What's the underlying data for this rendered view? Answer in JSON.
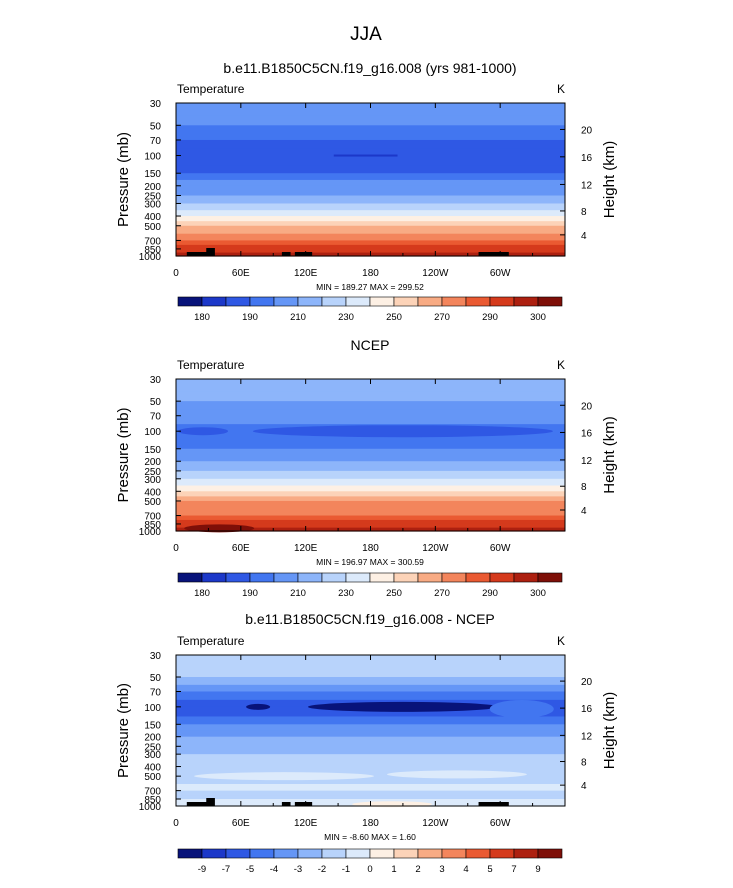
{
  "figure": {
    "title": "JJA"
  },
  "colors": {
    "temp": [
      "#08137a",
      "#1c38c9",
      "#2f58e4",
      "#4276f0",
      "#6596f6",
      "#8db5fa",
      "#b8d3fb",
      "#dceafb",
      "#fdf0e4",
      "#fcd3b8",
      "#f8ab84",
      "#f3855c",
      "#ea5a32",
      "#d53a1c",
      "#ad2010",
      "#7e0f08"
    ],
    "diff": [
      "#08137a",
      "#1c38c9",
      "#2f58e4",
      "#4276f0",
      "#6596f6",
      "#8db5fa",
      "#b8d3fb",
      "#dceafb",
      "#fdf0e4",
      "#fcd3b8",
      "#f8ab84",
      "#f3855c",
      "#ea5a32",
      "#d53a1c",
      "#ad2010",
      "#7e0f08"
    ],
    "land": "#000000"
  },
  "chart_data": [
    {
      "type": "heatmap",
      "title": "b.e11.B1850C5CN.f19_g16.008 (yrs 981-1000)",
      "left_label": "Temperature",
      "units": "K",
      "ylabel": "Pressure (mb)",
      "y2label": "Height (km)",
      "x_ticks": [
        "0",
        "60E",
        "120E",
        "180",
        "120W",
        "60W"
      ],
      "y_ticks": [
        "30",
        "50",
        "70",
        "100",
        "150",
        "200",
        "250",
        "300",
        "400",
        "500",
        "700",
        "850",
        "1000"
      ],
      "height_ticks": [
        "20",
        "16",
        "12",
        "8",
        "4"
      ],
      "stats": "MIN = 189.27  MAX = 299.52",
      "colorbar_labels": [
        "180",
        "190",
        "210",
        "230",
        "250",
        "270",
        "290",
        "300"
      ],
      "levels": [
        30,
        40,
        50,
        60,
        70,
        85,
        100,
        125,
        150,
        175,
        200,
        250,
        300,
        350,
        400,
        450,
        500,
        600,
        700,
        775,
        850,
        925,
        1000
      ],
      "band_color_index": [
        4,
        4,
        3,
        3,
        2,
        2,
        2,
        2,
        3,
        4,
        4,
        5,
        6,
        7,
        8,
        9,
        10,
        11,
        12,
        13,
        13,
        14
      ]
    },
    {
      "type": "heatmap",
      "title": "NCEP",
      "left_label": "Temperature",
      "units": "K",
      "ylabel": "Pressure (mb)",
      "y2label": "Height (km)",
      "x_ticks": [
        "0",
        "60E",
        "120E",
        "180",
        "120W",
        "60W"
      ],
      "y_ticks": [
        "30",
        "50",
        "70",
        "100",
        "150",
        "200",
        "250",
        "300",
        "400",
        "500",
        "700",
        "850",
        "1000"
      ],
      "height_ticks": [
        "20",
        "16",
        "12",
        "8",
        "4"
      ],
      "stats": "MIN = 196.97  MAX = 300.59",
      "colorbar_labels": [
        "180",
        "190",
        "210",
        "230",
        "250",
        "270",
        "290",
        "300"
      ],
      "levels": [
        30,
        40,
        50,
        60,
        70,
        85,
        100,
        125,
        150,
        175,
        200,
        250,
        300,
        350,
        400,
        450,
        500,
        600,
        700,
        775,
        850,
        925,
        1000
      ],
      "band_color_index": [
        5,
        5,
        4,
        4,
        4,
        3,
        3,
        3,
        4,
        4,
        5,
        6,
        7,
        8,
        9,
        10,
        11,
        11,
        12,
        13,
        13,
        14
      ]
    },
    {
      "type": "heatmap",
      "title": "b.e11.B1850C5CN.f19_g16.008 - NCEP",
      "left_label": "Temperature",
      "units": "K",
      "ylabel": "Pressure (mb)",
      "y2label": "Height (km)",
      "x_ticks": [
        "0",
        "60E",
        "120E",
        "180",
        "120W",
        "60W"
      ],
      "y_ticks": [
        "30",
        "50",
        "70",
        "100",
        "150",
        "200",
        "250",
        "300",
        "400",
        "500",
        "700",
        "850",
        "1000"
      ],
      "height_ticks": [
        "20",
        "16",
        "12",
        "8",
        "4"
      ],
      "stats": "MIN = -8.60  MAX =  1.60",
      "colorbar_labels": [
        "-9",
        "-7",
        "-5",
        "-4",
        "-3",
        "-2",
        "-1",
        "0",
        "1",
        "2",
        "3",
        "4",
        "5",
        "7",
        "9"
      ],
      "levels": [
        30,
        40,
        50,
        60,
        70,
        85,
        100,
        125,
        150,
        175,
        200,
        250,
        300,
        350,
        400,
        450,
        500,
        600,
        700,
        775,
        850,
        925,
        1000
      ],
      "band_color_index": [
        6,
        6,
        5,
        4,
        3,
        2,
        2,
        3,
        4,
        4,
        5,
        5,
        6,
        6,
        6,
        6,
        6,
        7,
        6,
        6,
        7,
        7
      ]
    }
  ]
}
